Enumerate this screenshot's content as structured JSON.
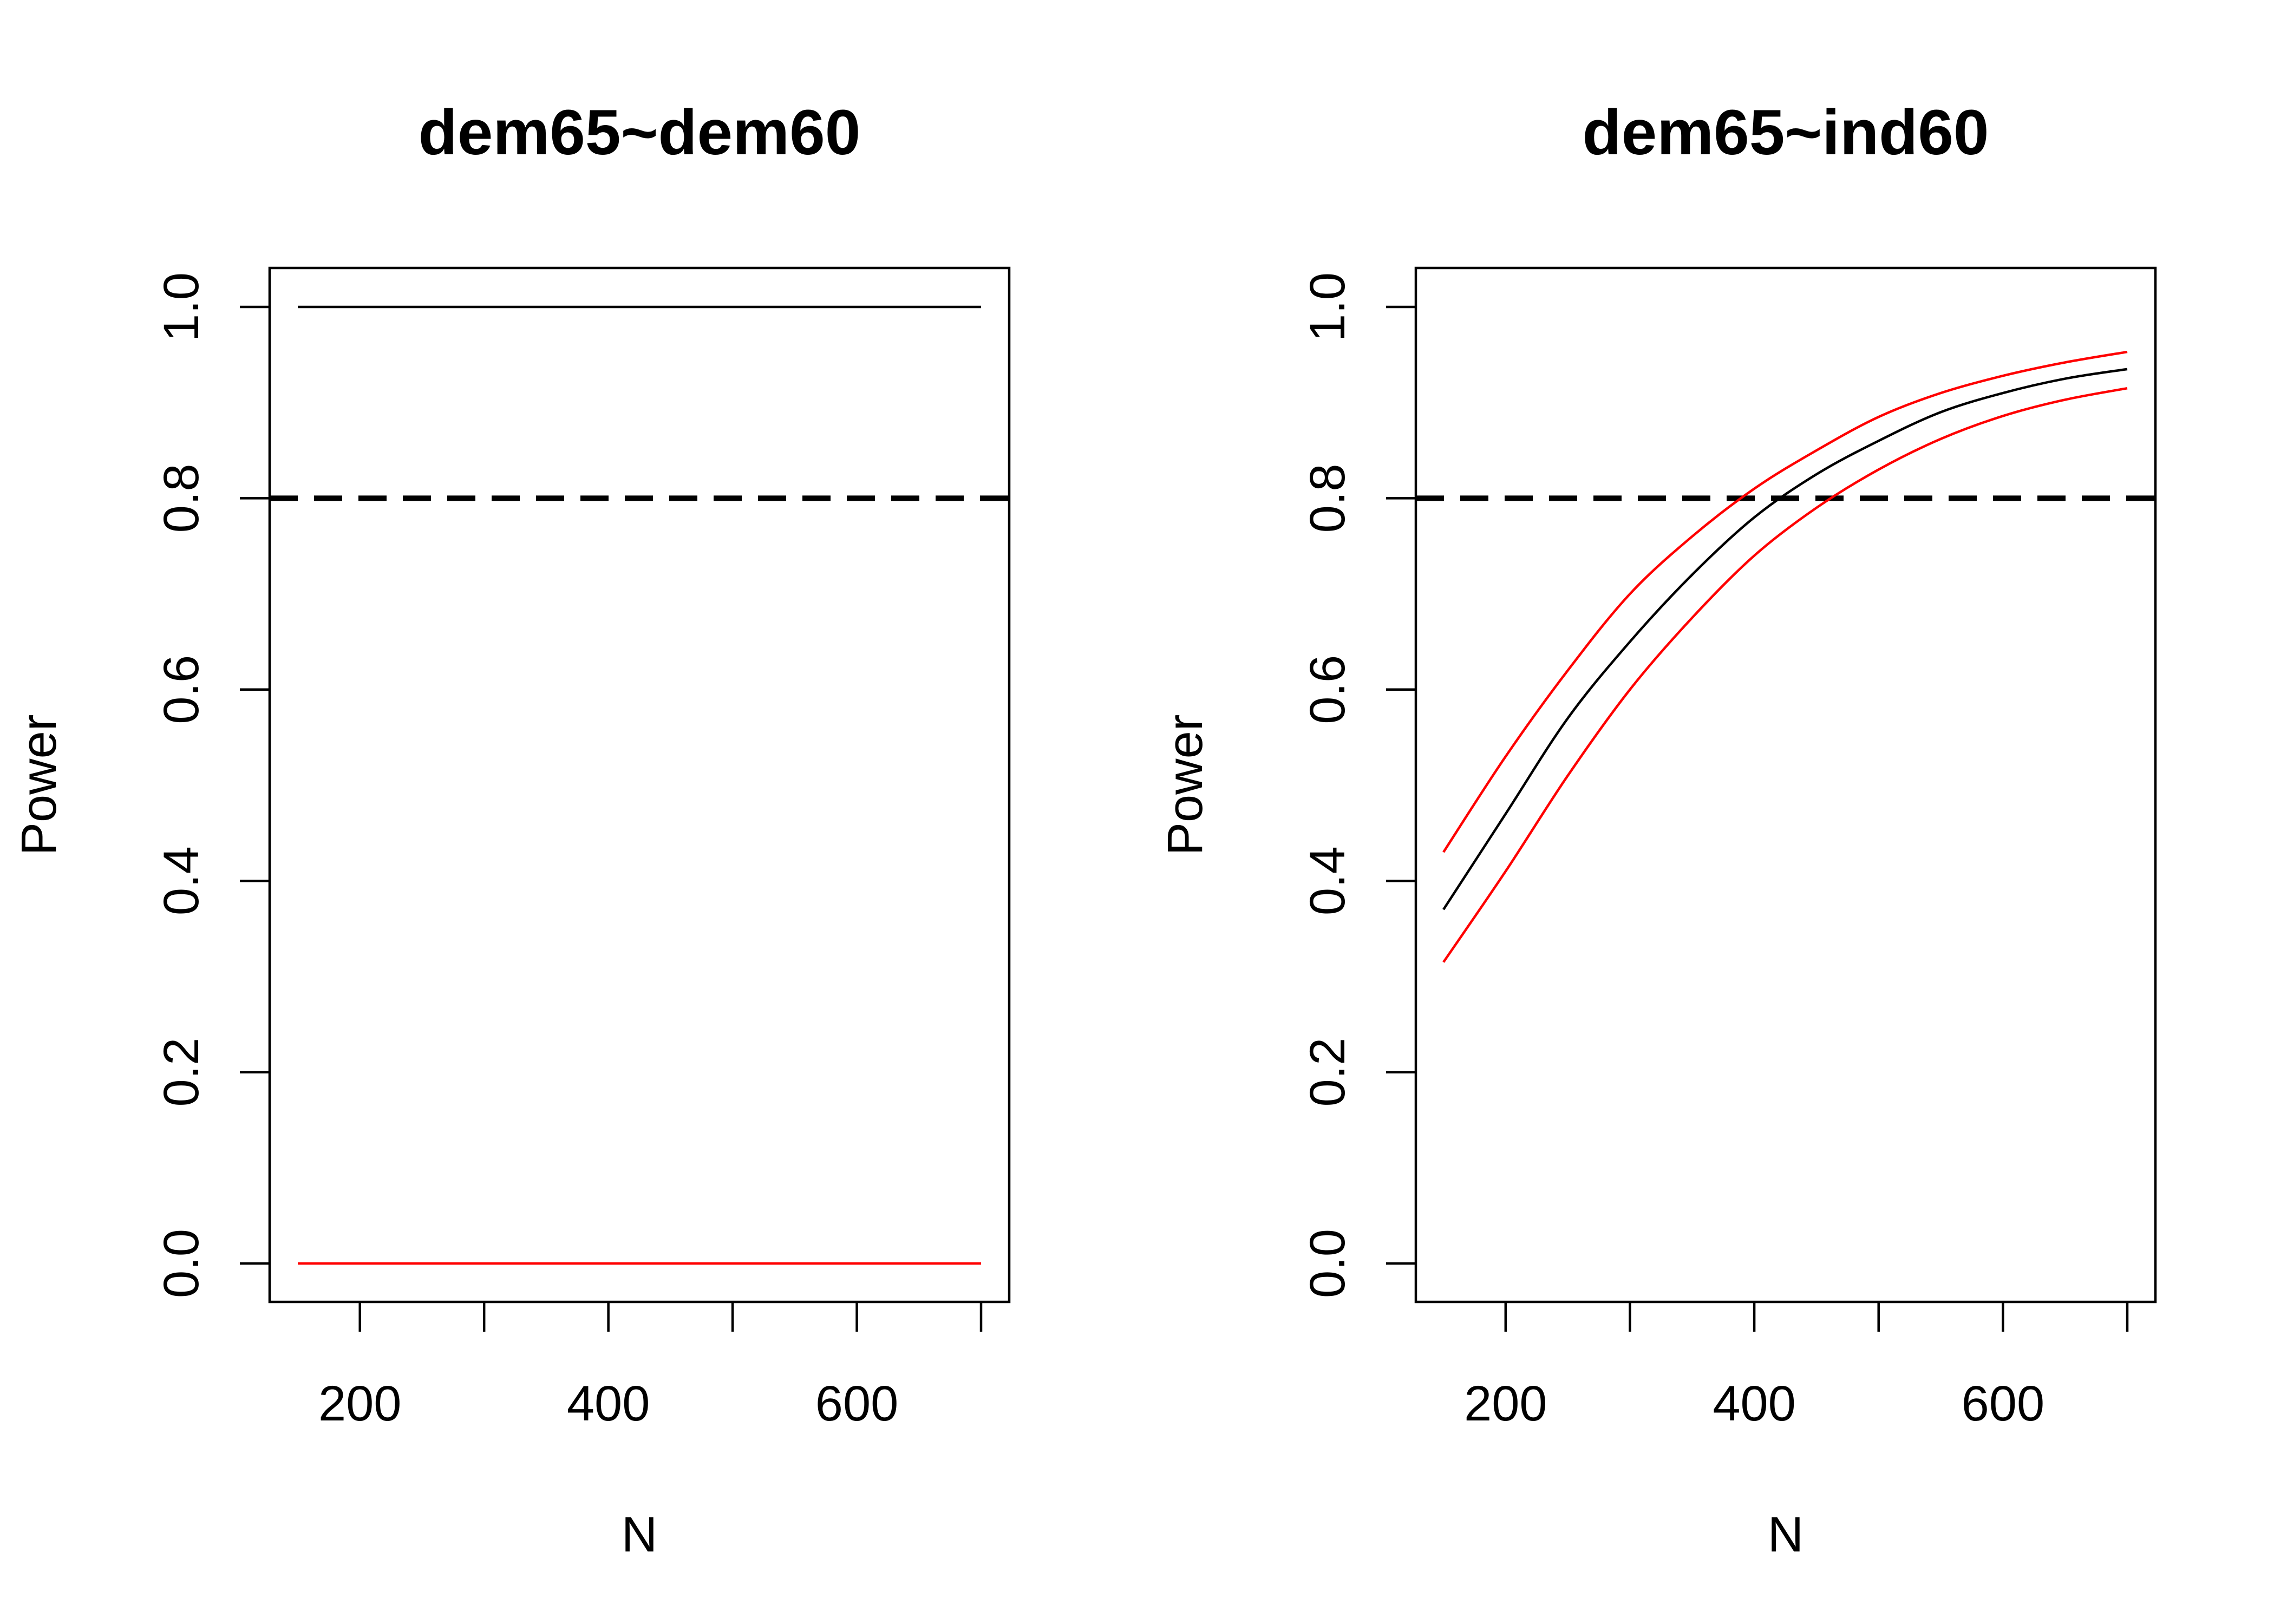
{
  "chart_data": [
    {
      "type": "line",
      "title": "dem65~dem60",
      "xlabel": "N",
      "ylabel": "Power",
      "xlim": [
        150,
        700
      ],
      "ylim": [
        0,
        1
      ],
      "xticks": [
        200,
        300,
        400,
        500,
        600,
        700
      ],
      "xtick_labels": [
        "200",
        "",
        "400",
        "",
        "600",
        ""
      ],
      "yticks": [
        0,
        0.2,
        0.4,
        0.6,
        0.8,
        1
      ],
      "ytick_labels": [
        "0.0",
        "0.2",
        "0.4",
        "0.6",
        "0.8",
        "1.0"
      ],
      "grid": false,
      "reference_line": {
        "y": 0.8,
        "style": "dashed",
        "color": "#000000"
      },
      "x": [
        150,
        700
      ],
      "series": [
        {
          "color": "#000000",
          "values": [
            1.0,
            1.0
          ]
        },
        {
          "color": "#ff0000",
          "values": [
            0.0,
            0.0
          ]
        }
      ]
    },
    {
      "type": "line",
      "title": "dem65~ind60",
      "xlabel": "N",
      "ylabel": "Power",
      "xlim": [
        150,
        700
      ],
      "ylim": [
        0,
        1
      ],
      "xticks": [
        200,
        300,
        400,
        500,
        600,
        700
      ],
      "xtick_labels": [
        "200",
        "",
        "400",
        "",
        "600",
        ""
      ],
      "yticks": [
        0,
        0.2,
        0.4,
        0.6,
        0.8,
        1
      ],
      "ytick_labels": [
        "0.0",
        "0.2",
        "0.4",
        "0.6",
        "0.8",
        "1.0"
      ],
      "grid": false,
      "reference_line": {
        "y": 0.8,
        "style": "dashed",
        "color": "#000000"
      },
      "x": [
        150,
        200,
        250,
        300,
        350,
        400,
        450,
        500,
        550,
        600,
        650,
        700
      ],
      "series": [
        {
          "color": "#000000",
          "values": [
            0.37,
            0.47,
            0.57,
            0.65,
            0.72,
            0.78,
            0.825,
            0.86,
            0.89,
            0.91,
            0.925,
            0.935
          ]
        },
        {
          "color": "#ff0000",
          "values": [
            0.43,
            0.53,
            0.62,
            0.7,
            0.76,
            0.81,
            0.85,
            0.885,
            0.91,
            0.928,
            0.942,
            0.953
          ]
        },
        {
          "color": "#ff0000",
          "values": [
            0.315,
            0.41,
            0.51,
            0.6,
            0.675,
            0.74,
            0.79,
            0.83,
            0.862,
            0.886,
            0.903,
            0.915
          ]
        }
      ]
    }
  ]
}
